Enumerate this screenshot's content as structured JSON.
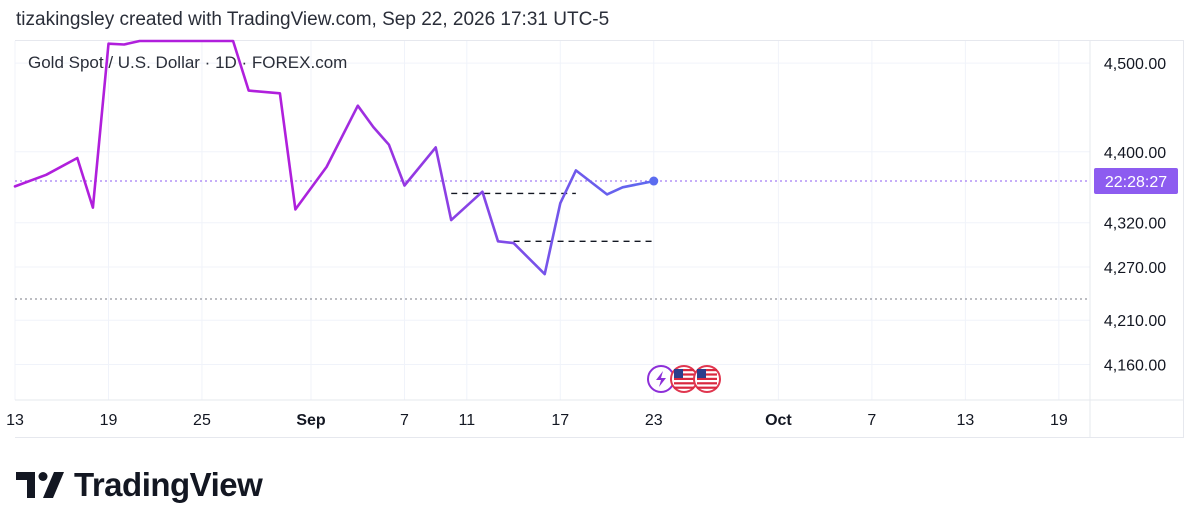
{
  "header": {
    "attribution": "tizakingsley created with TradingView.com, Sep 22, 2026 17:31 UTC-5"
  },
  "logo": {
    "text": "TradingView",
    "icon": "tradingview-logo-icon"
  },
  "colors": {
    "line_start": "#b01fdc",
    "line_end": "#5b6cf0",
    "label_bg": "#8d5cf0",
    "grid": "#f0f3fa",
    "text": "#131722"
  },
  "events": {
    "icons": [
      "lightning-icon",
      "us-flag-icon",
      "us-flag-icon"
    ]
  },
  "chart_data": {
    "type": "line",
    "title": "Gold Spot / U.S. Dollar · 1D · FOREX.com",
    "x_tick_labels": [
      "13",
      "19",
      "25",
      "Sep",
      "7",
      "11",
      "17",
      "23",
      "Oct",
      "7",
      "13",
      "19"
    ],
    "x_ticks": [
      "2026-08-13",
      "2026-08-19",
      "2026-08-25",
      "2026-09-01",
      "2026-09-07",
      "2026-09-11",
      "2026-09-17",
      "2026-09-23",
      "2026-10-01",
      "2026-10-07",
      "2026-10-13",
      "2026-10-19"
    ],
    "xlim": [
      "2026-08-13",
      "2026-10-21"
    ],
    "y_tick_labels": [
      "4,500.00",
      "4,400.00",
      "4,320.00",
      "4,270.00",
      "4,210.00",
      "4,160.00"
    ],
    "y_ticks": [
      4500,
      4400,
      4320,
      4270,
      4210,
      4160
    ],
    "ylim": [
      4120,
      4525
    ],
    "series": [
      {
        "values": [
          [
            "2026-08-13",
            4361
          ],
          [
            "2026-08-15",
            4374
          ],
          [
            "2026-08-17",
            4393
          ],
          [
            "2026-08-18",
            4337
          ],
          [
            "2026-08-19",
            4522
          ],
          [
            "2026-08-20",
            4521
          ],
          [
            "2026-08-21",
            4525
          ],
          [
            "2026-08-27",
            4525
          ],
          [
            "2026-08-28",
            4469
          ],
          [
            "2026-08-30",
            4466
          ],
          [
            "2026-08-31",
            4335
          ],
          [
            "2026-09-02",
            4383
          ],
          [
            "2026-09-04",
            4452
          ],
          [
            "2026-09-05",
            4428
          ],
          [
            "2026-09-06",
            4408
          ],
          [
            "2026-09-07",
            4362
          ],
          [
            "2026-09-09",
            4405
          ],
          [
            "2026-09-10",
            4323
          ],
          [
            "2026-09-12",
            4355
          ],
          [
            "2026-09-13",
            4299
          ],
          [
            "2026-09-14",
            4297
          ],
          [
            "2026-09-16",
            4262
          ],
          [
            "2026-09-17",
            4342
          ],
          [
            "2026-09-18",
            4379
          ],
          [
            "2026-09-20",
            4352
          ],
          [
            "2026-09-21",
            4360
          ],
          [
            "2026-09-23",
            4367
          ]
        ]
      }
    ],
    "last_value_label": "22:28:27",
    "last_value": 4367,
    "horizontal_lines": [
      {
        "value": 4367,
        "style": "dotted",
        "color": "#8d5cf0",
        "full_width": true
      },
      {
        "value": 4234,
        "style": "dotted",
        "color": "#787b86",
        "full_width": true
      },
      {
        "value": 4353,
        "style": "dashed",
        "color": "#131722",
        "from": "2026-09-10",
        "to": "2026-09-18"
      },
      {
        "value": 4299,
        "style": "dashed",
        "color": "#131722",
        "from": "2026-09-14",
        "to": "2026-09-23"
      }
    ],
    "grid": true,
    "legend": "none"
  }
}
